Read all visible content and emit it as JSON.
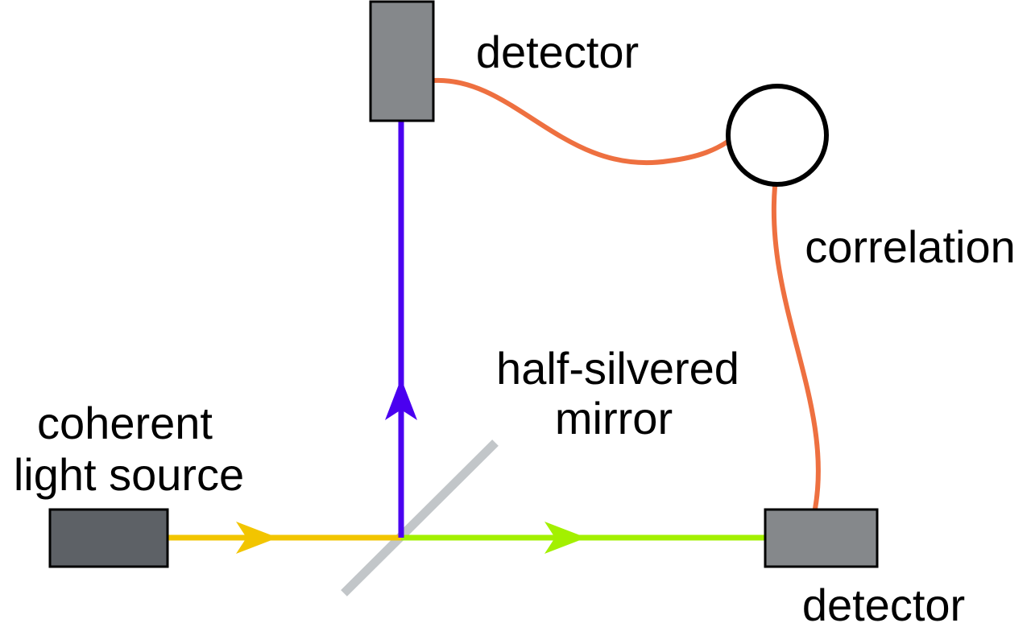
{
  "labels": {
    "source": [
      "coherent",
      "light source"
    ],
    "mirror": [
      "half-silvered",
      "mirror"
    ],
    "detector_top": "detector",
    "detector_right": "detector",
    "correlation": "correlation"
  },
  "colors": {
    "incoming_beam": "#f2c500",
    "reflected_beam": "#4a00f0",
    "transmitted_beam": "#a3f000",
    "correlation_wire": "#ee7040",
    "mirror": "#c2c6c9",
    "source_box": "#5d6166",
    "detector_box": "#85888b",
    "outline": "#000000"
  },
  "icons": {
    "correlator": "circle-icon",
    "beam_direction": "arrow-icon"
  }
}
